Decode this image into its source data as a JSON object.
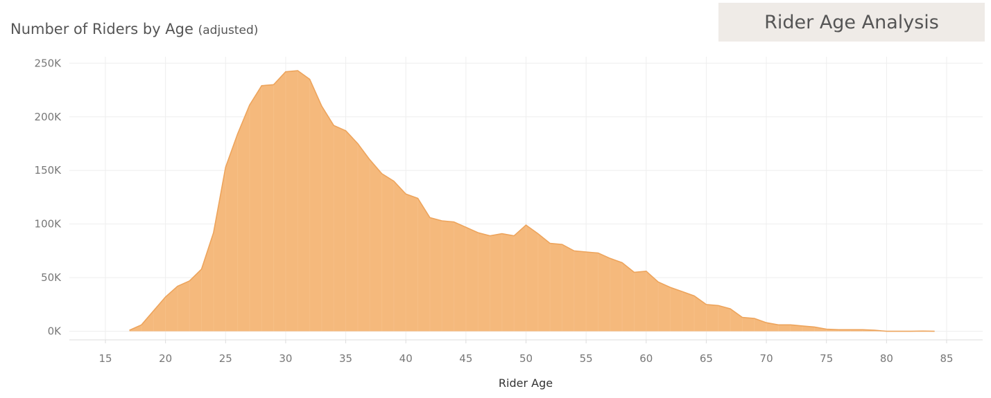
{
  "header": {
    "title": "Rider Age Analysis"
  },
  "chart_data": {
    "type": "area",
    "title": "Number of Riders by Age",
    "subtitle": "(adjusted)",
    "xlabel": "Rider Age",
    "ylabel": "",
    "xlim": [
      12,
      88
    ],
    "ylim": [
      -8000,
      256000
    ],
    "x_ticks": [
      15,
      20,
      25,
      30,
      35,
      40,
      45,
      50,
      55,
      60,
      65,
      70,
      75,
      80,
      85
    ],
    "y_ticks": [
      0,
      50000,
      100000,
      150000,
      200000,
      250000
    ],
    "y_tick_labels": [
      "0K",
      "50K",
      "100K",
      "150K",
      "200K",
      "250K"
    ],
    "grid": true,
    "color": "#f5b97c",
    "line_color": "#eda45c",
    "x": [
      17,
      18,
      19,
      20,
      21,
      22,
      23,
      24,
      25,
      26,
      27,
      28,
      29,
      30,
      31,
      32,
      33,
      34,
      35,
      36,
      37,
      38,
      39,
      40,
      41,
      42,
      43,
      44,
      45,
      46,
      47,
      48,
      49,
      50,
      51,
      52,
      53,
      54,
      55,
      56,
      57,
      58,
      59,
      60,
      61,
      62,
      63,
      64,
      65,
      66,
      67,
      68,
      69,
      70,
      71,
      72,
      73,
      74,
      75,
      76,
      77,
      78,
      79,
      80,
      81,
      82,
      83,
      84
    ],
    "values": [
      1000,
      6000,
      19000,
      32000,
      42000,
      47000,
      58000,
      92000,
      153000,
      184000,
      211000,
      229000,
      230000,
      242000,
      243000,
      235000,
      210000,
      192000,
      187000,
      175000,
      160000,
      147000,
      140000,
      128000,
      124000,
      106000,
      103000,
      102000,
      97000,
      92000,
      89000,
      91000,
      89000,
      99000,
      91000,
      82000,
      81000,
      75000,
      74000,
      73000,
      68000,
      64000,
      55000,
      56000,
      46000,
      41000,
      37000,
      33000,
      25000,
      24000,
      21000,
      13000,
      12000,
      8000,
      6000,
      6000,
      5000,
      4000,
      2000,
      1500,
      1500,
      1500,
      1000,
      0,
      0,
      0,
      200,
      0
    ]
  }
}
